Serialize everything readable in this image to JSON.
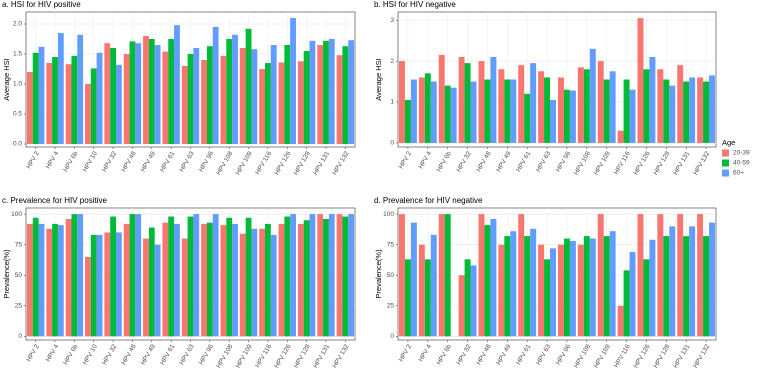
{
  "chart_data": [
    {
      "type": "bar",
      "title": "a. HSI for HIV positive",
      "y_label": "Average HSI",
      "categories": [
        "HPV 2",
        "HPV 4",
        "HPV 6b",
        "HPV 10",
        "HPV 32",
        "HPV 48",
        "HPV 49",
        "HPV 61",
        "HPV 63",
        "HPV 96",
        "HPV 108",
        "HPV 109",
        "HPV 116",
        "HPV 126",
        "HPV 128",
        "HPV 131",
        "HPV 132"
      ],
      "series": [
        {
          "name": "20-39",
          "color": "#F8766D",
          "values": [
            1.2,
            1.35,
            1.33,
            1.0,
            1.68,
            1.5,
            1.8,
            1.54,
            1.3,
            1.4,
            1.47,
            1.6,
            1.25,
            1.36,
            1.38,
            1.65,
            1.48
          ]
        },
        {
          "name": "40-59",
          "color": "#00BA38",
          "values": [
            1.52,
            1.45,
            1.47,
            1.26,
            1.6,
            1.71,
            1.75,
            1.75,
            1.5,
            1.63,
            1.75,
            1.92,
            1.35,
            1.65,
            1.55,
            1.72,
            1.63
          ]
        },
        {
          "name": "60+",
          "color": "#619CFF",
          "values": [
            1.62,
            1.85,
            1.82,
            1.52,
            1.32,
            1.68,
            1.65,
            1.98,
            1.6,
            1.95,
            1.82,
            1.58,
            1.65,
            2.1,
            1.72,
            1.75,
            1.73
          ]
        }
      ],
      "ylim": [
        -0.05,
        2.2
      ],
      "yticks": [
        {
          "value": 0,
          "label": "0.0"
        },
        {
          "value": 0.5,
          "label": "0.5"
        },
        {
          "value": 1,
          "label": "1.0"
        },
        {
          "value": 1.5,
          "label": "1.5"
        },
        {
          "value": 2,
          "label": "2.0"
        }
      ],
      "grid": true
    },
    {
      "type": "bar",
      "title": "b. HSI for HIV negative",
      "y_label": "Average HSI",
      "categories": [
        "HPV 2",
        "HPV 4",
        "HPV 6b",
        "HPV 32",
        "HPV 48",
        "HPV 49",
        "HPV 61",
        "HPV 63",
        "HPV 96",
        "HPV 108",
        "HPV 109",
        "HPV 116",
        "HPV 126",
        "HPV 128",
        "HPV 131",
        "HPV 132"
      ],
      "series": [
        {
          "name": "20-39",
          "color": "#F8766D",
          "values": [
            2.0,
            1.6,
            2.15,
            2.1,
            2.0,
            1.8,
            1.9,
            1.75,
            1.6,
            1.85,
            2.0,
            0.3,
            3.05,
            1.8,
            1.9,
            1.6
          ]
        },
        {
          "name": "40-59",
          "color": "#00BA38",
          "values": [
            1.05,
            1.7,
            1.4,
            1.95,
            1.55,
            1.55,
            1.2,
            1.6,
            1.3,
            1.8,
            1.55,
            1.55,
            1.8,
            1.55,
            1.5,
            1.5
          ]
        },
        {
          "name": "60+",
          "color": "#619CFF",
          "values": [
            1.55,
            1.5,
            1.35,
            1.5,
            2.1,
            1.55,
            1.95,
            1.05,
            1.28,
            2.3,
            1.75,
            1.3,
            2.1,
            1.4,
            1.6,
            1.65
          ]
        }
      ],
      "ylim": [
        -0.1,
        3.2
      ],
      "yticks": [
        0,
        1,
        2,
        3
      ],
      "grid": true
    },
    {
      "type": "bar",
      "title": "c. Prevalence for HIV positive",
      "y_label": "Prevalence(%)",
      "categories": [
        "HPV 2",
        "HPV 4",
        "HPV 6b",
        "HPV 10",
        "HPV 32",
        "HPV 48",
        "HPV 49",
        "HPV 61",
        "HPV 63",
        "HPV 96",
        "HPV 108",
        "HPV 109",
        "HPV 116",
        "HPV 126",
        "HPV 128",
        "HPV 131",
        "HPV 132"
      ],
      "series": [
        {
          "name": "20-39",
          "color": "#F8766D",
          "values": [
            92,
            88,
            96,
            65,
            85,
            92,
            80,
            93,
            80,
            92,
            91,
            84,
            88,
            92,
            92,
            100,
            100
          ]
        },
        {
          "name": "40-59",
          "color": "#00BA38",
          "values": [
            97,
            92,
            100,
            83,
            98,
            100,
            89,
            98,
            98,
            93,
            97,
            97,
            92,
            98,
            95,
            96,
            98
          ]
        },
        {
          "name": "60+",
          "color": "#619CFF",
          "values": [
            92,
            91,
            100,
            83,
            85,
            100,
            75,
            92,
            100,
            100,
            92,
            88,
            83,
            100,
            100,
            100,
            100
          ]
        }
      ],
      "ylim": [
        -3,
        105
      ],
      "yticks": [
        0,
        25,
        50,
        75,
        100
      ],
      "grid": true
    },
    {
      "type": "bar",
      "title": "d. Prevalence for HIV negative",
      "y_label": "Prevalence(%)",
      "categories": [
        "HPV 2",
        "HPV 4",
        "HPV 6b",
        "HPV 32",
        "HPV 48",
        "HPV 49",
        "HPV 61",
        "HPV 63",
        "HPV 96",
        "HPV 108",
        "HPV 109",
        "HPV 116",
        "HPV 126",
        "HPV 128",
        "HPV 131",
        "HPV 132"
      ],
      "series": [
        {
          "name": "20-39",
          "color": "#F8766D",
          "values": [
            100,
            75,
            100,
            50,
            100,
            75,
            100,
            75,
            75,
            75,
            100,
            25,
            100,
            100,
            100,
            100
          ]
        },
        {
          "name": "40-59",
          "color": "#00BA38",
          "values": [
            63,
            63,
            100,
            63,
            91,
            82,
            82,
            63,
            80,
            82,
            82,
            54,
            63,
            82,
            82,
            82
          ]
        },
        {
          "name": "60+",
          "color": "#619CFF",
          "values": [
            93,
            83,
            null,
            58,
            96,
            86,
            88,
            72,
            78,
            80,
            86,
            69,
            79,
            90,
            90,
            93
          ]
        }
      ],
      "ylim": [
        -3,
        105
      ],
      "yticks": [
        0,
        25,
        50,
        75,
        100
      ],
      "grid": true
    }
  ],
  "legend": {
    "title": "Age"
  }
}
